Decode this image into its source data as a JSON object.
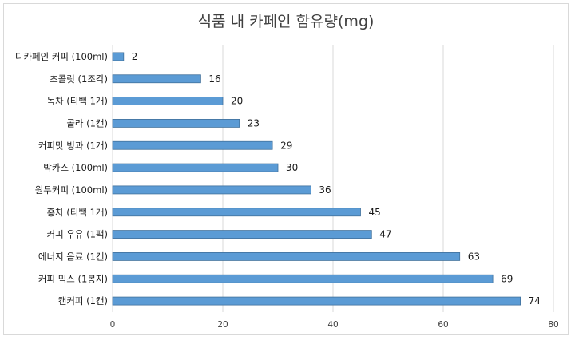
{
  "chart_data": {
    "type": "bar",
    "orientation": "horizontal",
    "title": "식품 내 카페인 함유량(mg)",
    "categories": [
      "디카페인 커피 (100ml)",
      "초콜릿 (1조각)",
      "녹차 (티백 1개)",
      "콜라 (1캔)",
      "커피맛 빙과 (1개)",
      "박카스 (100ml)",
      "원두커피 (100ml)",
      "홍차 (티백 1개)",
      "커피 우유 (1팩)",
      "에너지 음료 (1캔)",
      "커피 믹스 (1봉지)",
      "캔커피 (1캔)"
    ],
    "values": [
      2,
      16,
      20,
      23,
      29,
      30,
      36,
      45,
      47,
      63,
      69,
      74
    ],
    "xlim": [
      0,
      80
    ],
    "xticks": [
      0,
      20,
      40,
      60,
      80
    ],
    "xlabel": "",
    "ylabel": "",
    "grid": "vertical",
    "legend": "none",
    "bar_color": "#5b9bd5",
    "bar_edge_color": "#41719c"
  }
}
